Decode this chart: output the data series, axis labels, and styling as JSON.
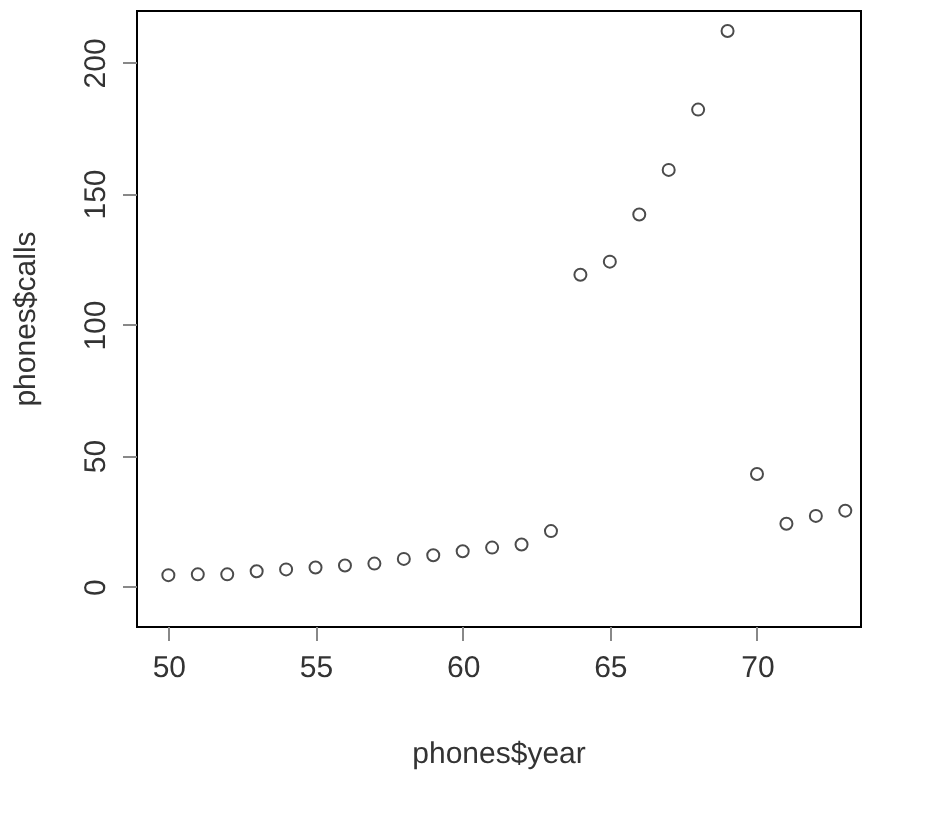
{
  "chart_data": {
    "type": "scatter",
    "xlabel": "phones$year",
    "ylabel": "phones$calls",
    "x": [
      50,
      51,
      52,
      53,
      54,
      55,
      56,
      57,
      58,
      59,
      60,
      61,
      62,
      63,
      64,
      65,
      66,
      67,
      68,
      69,
      70,
      71,
      72,
      73
    ],
    "values": [
      4.4,
      4.7,
      4.7,
      5.9,
      6.6,
      7.3,
      8.1,
      8.8,
      10.6,
      12.0,
      13.5,
      14.9,
      16.1,
      21.2,
      119.0,
      124.0,
      142.0,
      159.0,
      182.0,
      212.0,
      43.0,
      24.0,
      27.0,
      29.0
    ],
    "color": "#000000",
    "marker": "circle",
    "grid": false,
    "xlim": [
      48.9,
      73.5
    ],
    "ylim": [
      -15,
      220
    ],
    "xticks": [
      50,
      55,
      60,
      65,
      70
    ],
    "yticks": [
      0,
      50,
      100,
      150,
      200
    ]
  }
}
